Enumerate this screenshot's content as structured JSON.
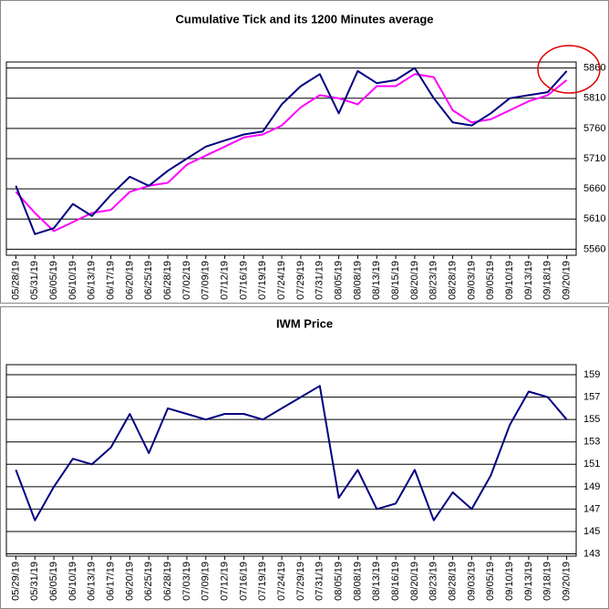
{
  "chart_data": [
    {
      "type": "line",
      "title": "Cumulative Tick and its 1200 Minutes average",
      "categories": [
        "05/28/19",
        "05/31/19",
        "06/05/19",
        "06/10/19",
        "06/13/19",
        "06/17/19",
        "06/20/19",
        "06/25/19",
        "06/28/19",
        "07/02/19",
        "07/09/19",
        "07/12/19",
        "07/16/19",
        "07/19/19",
        "07/24/19",
        "07/29/19",
        "07/31/19",
        "08/05/19",
        "08/08/19",
        "08/13/19",
        "08/15/19",
        "08/20/19",
        "08/23/19",
        "08/28/19",
        "09/03/19",
        "09/05/19",
        "09/10/19",
        "09/13/19",
        "09/18/19",
        "09/20/19"
      ],
      "series": [
        {
          "color": "#ff00ff",
          "values": [
            5655,
            5620,
            5590,
            5605,
            5620,
            5625,
            5655,
            5665,
            5670,
            5700,
            5715,
            5730,
            5745,
            5750,
            5765,
            5795,
            5815,
            5810,
            5800,
            5830,
            5830,
            5850,
            5845,
            5790,
            5770,
            5775,
            5790,
            5805,
            5815,
            5840
          ]
        },
        {
          "color": "#000080",
          "values": [
            5665,
            5585,
            5595,
            5635,
            5615,
            5650,
            5680,
            5665,
            5690,
            5710,
            5730,
            5740,
            5750,
            5755,
            5800,
            5830,
            5850,
            5785,
            5855,
            5835,
            5840,
            5860,
            5810,
            5770,
            5765,
            5785,
            5810,
            5815,
            5820,
            5855
          ]
        }
      ],
      "ylim": [
        5550,
        5870
      ],
      "yticks": [
        5560,
        5610,
        5660,
        5710,
        5760,
        5810,
        5860
      ],
      "grid": true
    },
    {
      "type": "line",
      "title": "IWM Price",
      "categories": [
        "05/29/19",
        "05/31/19",
        "06/05/19",
        "06/10/19",
        "06/13/19",
        "06/17/19",
        "06/20/19",
        "06/25/19",
        "06/28/19",
        "07/03/19",
        "07/09/19",
        "07/12/19",
        "07/16/19",
        "07/19/19",
        "07/24/19",
        "07/29/19",
        "07/31/19",
        "08/05/19",
        "08/08/19",
        "08/13/19",
        "08/16/19",
        "08/20/19",
        "08/23/19",
        "08/28/19",
        "09/03/19",
        "09/05/19",
        "09/10/19",
        "09/13/19",
        "09/18/19",
        "09/20/19"
      ],
      "series": [
        {
          "color": "#000080",
          "values": [
            150.5,
            146,
            149,
            151.5,
            151,
            152.5,
            155.5,
            152,
            156,
            155.5,
            155,
            155.5,
            155.5,
            155,
            156,
            157,
            158,
            148,
            150.5,
            147,
            147.5,
            150.5,
            146,
            148.5,
            147,
            150,
            154.5,
            157.5,
            157,
            155
          ]
        }
      ],
      "ylim": [
        142.8,
        159.9
      ],
      "yticks": [
        143,
        145,
        147,
        149,
        151,
        153,
        155,
        157,
        159
      ],
      "grid": true
    }
  ]
}
